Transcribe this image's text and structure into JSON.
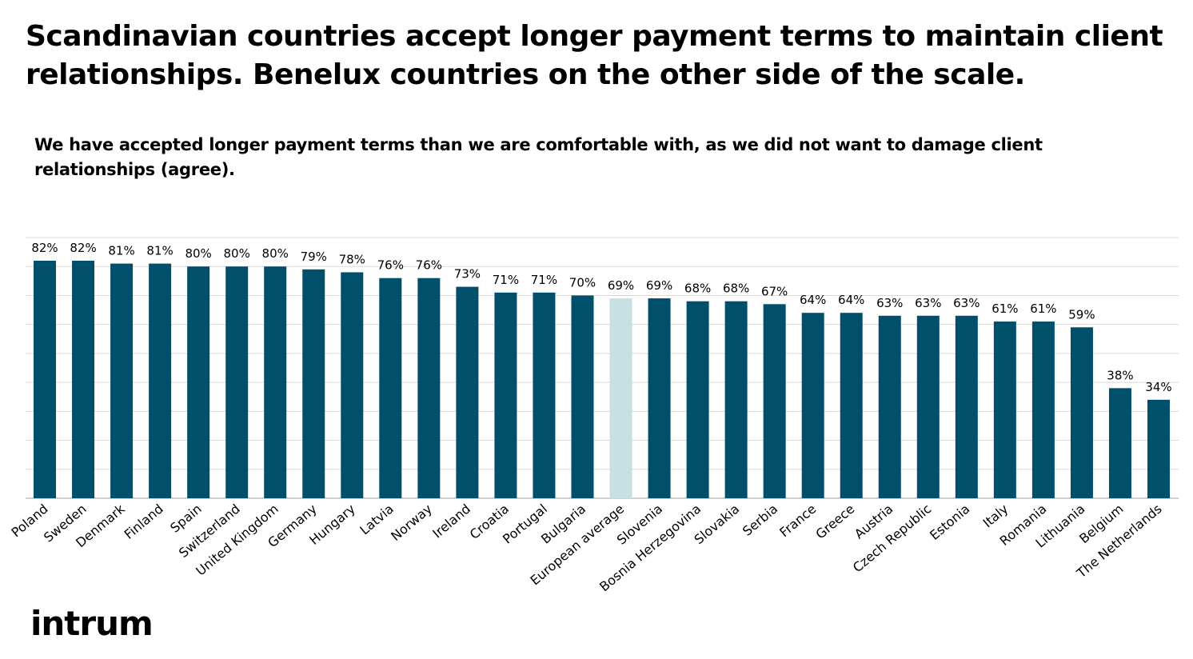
{
  "headline": "Scandinavian countries accept longer payment terms to maintain client relationships. Benelux countries on the other side of the scale.",
  "question": "We have accepted longer payment terms than we are comfortable with, as we did not want to damage client relationships (agree).",
  "logo_text": "intrum",
  "colors": {
    "bar": "#00506b",
    "highlight_bar": "#c6e0e3",
    "grid": "#d9d9d9",
    "axis": "#bfbfbf",
    "text": "#000000"
  },
  "chart_data": {
    "type": "bar",
    "title": "",
    "xlabel": "",
    "ylabel": "",
    "ylim": [
      0,
      90
    ],
    "grid": true,
    "value_suffix": "%",
    "highlight_category": "European average",
    "categories": [
      "Poland",
      "Sweden",
      "Denmark",
      "Finland",
      "Spain",
      "Switzerland",
      "United Kingdom",
      "Germany",
      "Hungary",
      "Latvia",
      "Norway",
      "Ireland",
      "Croatia",
      "Portugal",
      "Bulgaria",
      "European average",
      "Slovenia",
      "Bosnia Herzegovina",
      "Slovakia",
      "Serbia",
      "France",
      "Greece",
      "Austria",
      "Czech Republic",
      "Estonia",
      "Italy",
      "Romania",
      "Lithuania",
      "Belgium",
      "The Netherlands"
    ],
    "values": [
      82,
      82,
      81,
      81,
      80,
      80,
      80,
      79,
      78,
      76,
      76,
      73,
      71,
      71,
      70,
      69,
      69,
      68,
      68,
      67,
      64,
      64,
      63,
      63,
      63,
      61,
      61,
      59,
      38,
      34
    ]
  }
}
